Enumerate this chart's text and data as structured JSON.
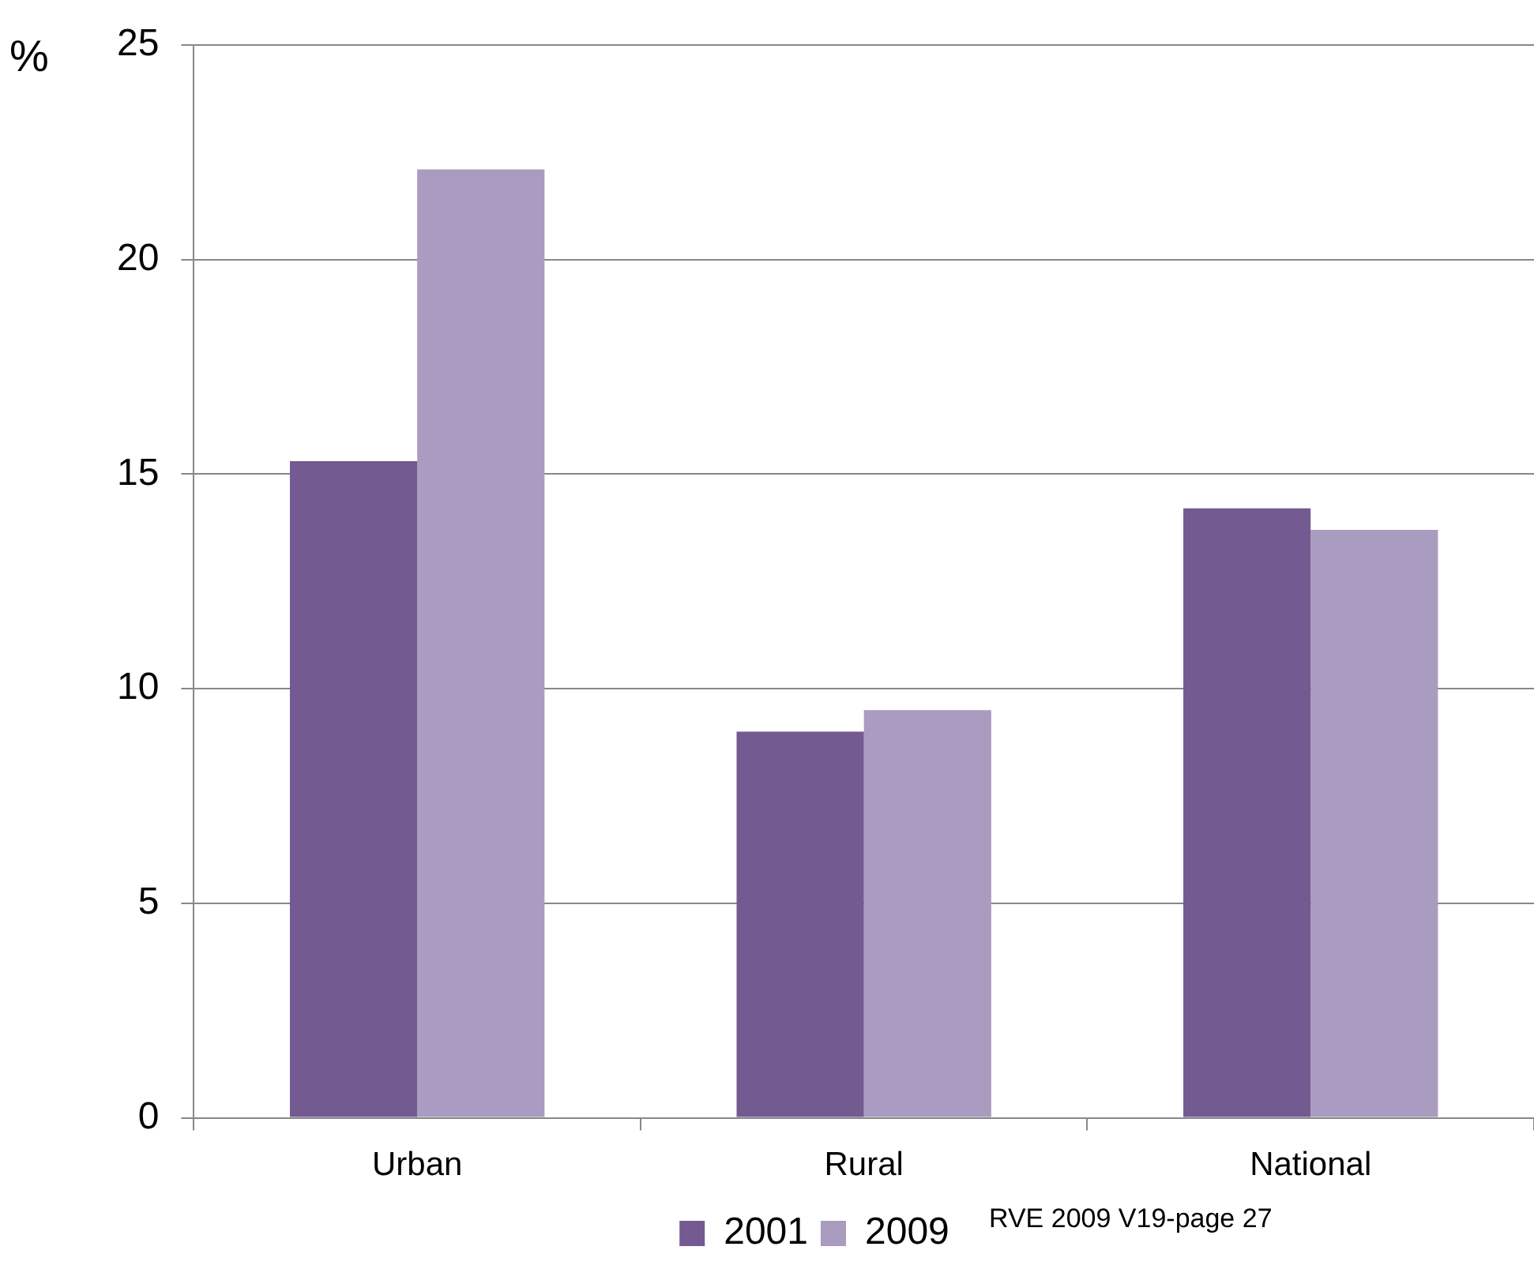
{
  "chart_data": {
    "type": "bar",
    "ylabel": "%",
    "categories": [
      "Urban",
      "Rural",
      "National"
    ],
    "series": [
      {
        "name": "2001",
        "color": "#735a91",
        "values": [
          15.3,
          9.0,
          14.2
        ]
      },
      {
        "name": "2009",
        "color": "#aa9bc0",
        "values": [
          22.1,
          9.5,
          13.7
        ]
      }
    ],
    "ylim": [
      0,
      25
    ],
    "yticks": [
      0,
      5,
      10,
      15,
      20,
      25
    ],
    "grid": "y",
    "legend": "bottom",
    "annotations": [
      "RVE 2009 V19-page 27"
    ]
  }
}
